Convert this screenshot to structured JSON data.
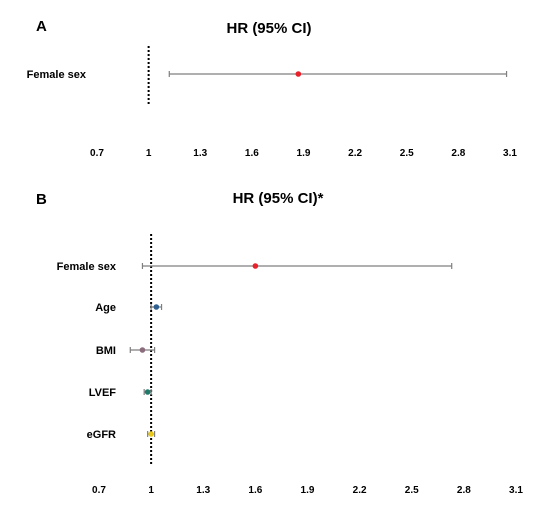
{
  "chart_data": [
    {
      "type": "forest",
      "panel": "A",
      "title": "HR (95% CI)",
      "reference_line": 1,
      "xlim": [
        0.7,
        3.1
      ],
      "xticks": [
        "0.7",
        "1",
        "1.3",
        "1.6",
        "1.9",
        "2.2",
        "2.5",
        "2.8",
        "3.1"
      ],
      "rows": [
        {
          "label": "Female sex",
          "hr": 1.87,
          "lower": 1.12,
          "upper": 3.08,
          "color": "#e8202a"
        }
      ]
    },
    {
      "type": "forest",
      "panel": "B",
      "title": "HR (95% CI)*",
      "reference_line": 1,
      "xlim": [
        0.7,
        3.1
      ],
      "xticks": [
        "0.7",
        "1",
        "1.3",
        "1.6",
        "1.9",
        "2.2",
        "2.5",
        "2.8",
        "3.1"
      ],
      "rows": [
        {
          "label": "Female sex",
          "hr": 1.6,
          "lower": 0.95,
          "upper": 2.73,
          "color": "#e8202a"
        },
        {
          "label": "Age",
          "hr": 1.03,
          "lower": 1.0,
          "upper": 1.06,
          "color": "#2e5f8f"
        },
        {
          "label": "BMI",
          "hr": 0.95,
          "lower": 0.88,
          "upper": 1.02,
          "color": "#8a6c7c"
        },
        {
          "label": "LVEF",
          "hr": 0.98,
          "lower": 0.96,
          "upper": 1.0,
          "color": "#1f7a6a"
        },
        {
          "label": "eGFR",
          "hr": 1.0,
          "lower": 0.98,
          "upper": 1.02,
          "color": "#e8c81a"
        }
      ]
    }
  ]
}
